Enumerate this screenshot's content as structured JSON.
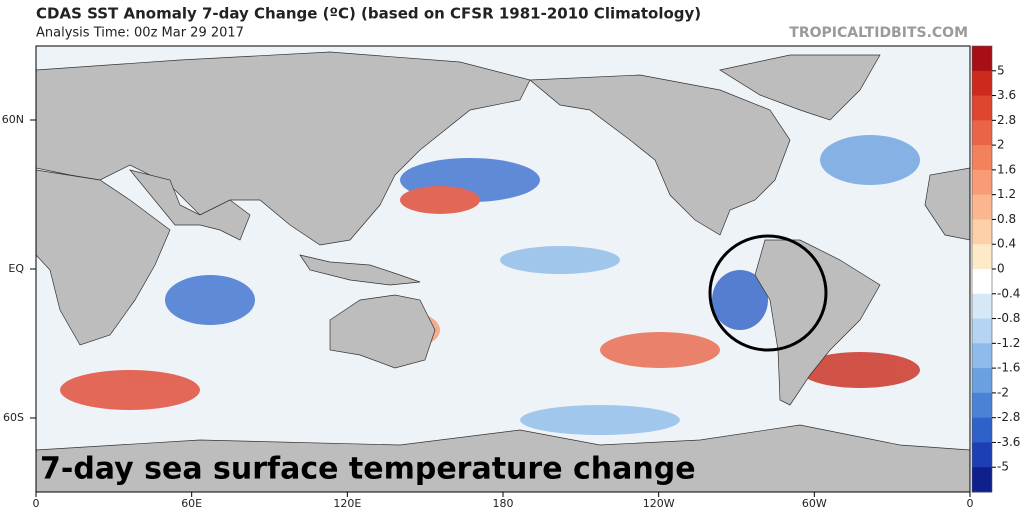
{
  "header": {
    "title": "CDAS SST Anomaly 7-day Change (ºC) (based on CFSR 1981-2010 Climatology)",
    "subtitle": "Analysis Time: 00z Mar 29 2017",
    "source": "TROPICALTIDBITS.COM"
  },
  "map": {
    "latitude_labels": [
      "60N",
      "EQ",
      "60S"
    ],
    "longitude_labels": [
      "0",
      "60E",
      "120E",
      "180",
      "120W",
      "60W",
      "0"
    ],
    "caption": "7-day sea surface temperature change"
  },
  "colorbar": {
    "ticks": [
      5,
      3.6,
      2.8,
      2,
      1.6,
      1.2,
      0.8,
      0.4,
      0,
      -0.4,
      -0.8,
      -1.2,
      -1.6,
      -2,
      -2.8,
      -3.6,
      -5
    ],
    "colors": [
      "#a50f15",
      "#cb2a1c",
      "#e0452f",
      "#ea6547",
      "#f2815c",
      "#f79c74",
      "#fbb68f",
      "#fdd0a8",
      "#fdeac8",
      "#ffffff",
      "#d6e8f8",
      "#b5d4f2",
      "#8fbbea",
      "#6aa0e0",
      "#4a82d6",
      "#2f62c8",
      "#1c3fb3",
      "#0f1f8c"
    ]
  }
}
